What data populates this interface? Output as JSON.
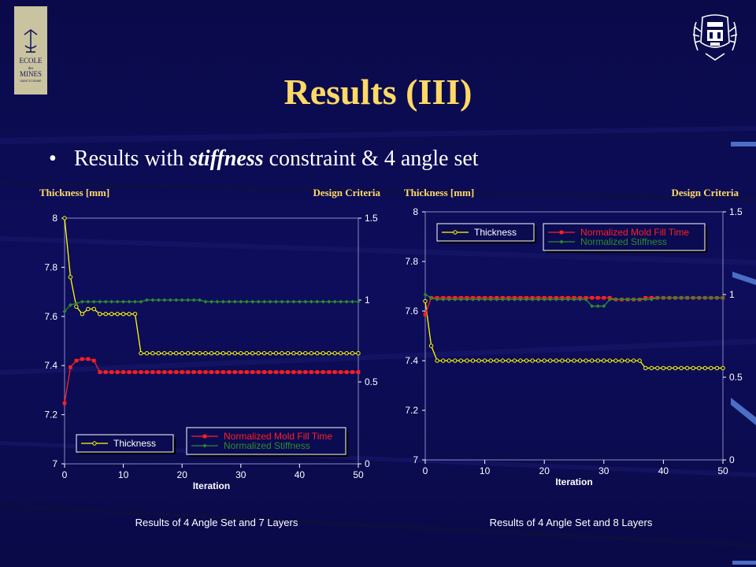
{
  "slide": {
    "title": "Results (III)",
    "bullet_prefix": "Results with ",
    "bullet_emphasis": "stiffness",
    "bullet_suffix": " constraint & 4 angle set",
    "logo_left_text": [
      "ECOLE",
      "des",
      "MINES",
      "SAINT-ETIENNE"
    ]
  },
  "chart_data": [
    {
      "type": "line",
      "caption": "Results of 4 Angle Set and 7 Layers",
      "left_axis_title": "Thickness [mm]",
      "right_axis_title": "Design Criteria",
      "xlabel": "Iteration",
      "xlim": [
        0,
        50
      ],
      "xticks": [
        0,
        10,
        20,
        30,
        40,
        50
      ],
      "ylim_left": [
        7,
        8
      ],
      "yticks_left": [
        7,
        7.2,
        7.4,
        7.6,
        7.8,
        8
      ],
      "ylim_right": [
        0,
        1.5
      ],
      "yticks_right": [
        0,
        0.5,
        1,
        1.5
      ],
      "grid": false,
      "legend": [
        "bottom-left",
        "bottom-right"
      ],
      "series": [
        {
          "name": "Thickness",
          "axis": "left",
          "color": "#ffff00",
          "marker": "circle",
          "x": [
            0,
            1,
            2,
            3,
            4,
            5,
            6,
            7,
            8,
            9,
            10,
            11,
            12,
            13,
            14,
            15,
            16,
            17,
            18,
            19,
            20,
            21,
            22,
            23,
            24,
            25,
            26,
            27,
            28,
            29,
            30,
            31,
            32,
            33,
            34,
            35,
            36,
            37,
            38,
            39,
            40,
            41,
            42,
            43,
            44,
            45,
            46,
            47,
            48,
            49,
            50
          ],
          "values": [
            8.0,
            7.76,
            7.64,
            7.61,
            7.63,
            7.63,
            7.61,
            7.61,
            7.61,
            7.61,
            7.61,
            7.61,
            7.61,
            7.45,
            7.45,
            7.45,
            7.45,
            7.45,
            7.45,
            7.45,
            7.45,
            7.45,
            7.45,
            7.45,
            7.45,
            7.45,
            7.45,
            7.45,
            7.45,
            7.45,
            7.45,
            7.45,
            7.45,
            7.45,
            7.45,
            7.45,
            7.45,
            7.45,
            7.45,
            7.45,
            7.45,
            7.45,
            7.45,
            7.45,
            7.45,
            7.45,
            7.45,
            7.45,
            7.45,
            7.45,
            7.45
          ]
        },
        {
          "name": "Normalized Mold Fill Time",
          "axis": "right",
          "color": "#ff2020",
          "marker": "square",
          "x": [
            0,
            1,
            2,
            3,
            4,
            5,
            6,
            7,
            8,
            9,
            10,
            11,
            12,
            13,
            14,
            15,
            16,
            17,
            18,
            19,
            20,
            21,
            22,
            23,
            24,
            25,
            26,
            27,
            28,
            29,
            30,
            31,
            32,
            33,
            34,
            35,
            36,
            37,
            38,
            39,
            40,
            41,
            42,
            43,
            44,
            45,
            46,
            47,
            48,
            49,
            50
          ],
          "values": [
            0.37,
            0.59,
            0.63,
            0.64,
            0.64,
            0.63,
            0.56,
            0.56,
            0.56,
            0.56,
            0.56,
            0.56,
            0.56,
            0.56,
            0.56,
            0.56,
            0.56,
            0.56,
            0.56,
            0.56,
            0.56,
            0.56,
            0.56,
            0.56,
            0.56,
            0.56,
            0.56,
            0.56,
            0.56,
            0.56,
            0.56,
            0.56,
            0.56,
            0.56,
            0.56,
            0.56,
            0.56,
            0.56,
            0.56,
            0.56,
            0.56,
            0.56,
            0.56,
            0.56,
            0.56,
            0.56,
            0.56,
            0.56,
            0.56,
            0.56,
            0.56
          ]
        },
        {
          "name": "Normalized Stiffness",
          "axis": "right",
          "color": "#2e8b2e",
          "marker": "diamond",
          "x": [
            0,
            1,
            2,
            3,
            4,
            5,
            6,
            7,
            8,
            9,
            10,
            11,
            12,
            13,
            14,
            15,
            16,
            17,
            18,
            19,
            20,
            21,
            22,
            23,
            24,
            25,
            26,
            27,
            28,
            29,
            30,
            31,
            32,
            33,
            34,
            35,
            36,
            37,
            38,
            39,
            40,
            41,
            42,
            43,
            44,
            45,
            46,
            47,
            48,
            49,
            50
          ],
          "values": [
            0.93,
            0.97,
            0.98,
            0.99,
            0.99,
            0.99,
            0.99,
            0.99,
            0.99,
            0.99,
            0.99,
            0.99,
            0.99,
            0.99,
            1.0,
            1.0,
            1.0,
            1.0,
            1.0,
            1.0,
            1.0,
            1.0,
            1.0,
            1.0,
            0.99,
            0.99,
            0.99,
            0.99,
            0.99,
            0.99,
            0.99,
            0.99,
            0.99,
            0.99,
            0.99,
            0.99,
            0.99,
            0.99,
            0.99,
            0.99,
            0.99,
            0.99,
            0.99,
            0.99,
            0.99,
            0.99,
            0.99,
            0.99,
            0.99,
            0.99,
            0.99
          ]
        }
      ]
    },
    {
      "type": "line",
      "caption": "Results of 4 Angle Set and 8 Layers",
      "left_axis_title": "Thickness [mm]",
      "right_axis_title": "Design Criteria",
      "xlabel": "Iteration",
      "xlim": [
        0,
        50
      ],
      "xticks": [
        0,
        10,
        20,
        30,
        40,
        50
      ],
      "ylim_left": [
        7,
        8
      ],
      "yticks_left": [
        7,
        7.2,
        7.4,
        7.6,
        7.8,
        8
      ],
      "ylim_right": [
        0,
        1.5
      ],
      "yticks_right": [
        0,
        0.5,
        1,
        1.5
      ],
      "grid": false,
      "legend": [
        "top-left",
        "top-right"
      ],
      "series": [
        {
          "name": "Thickness",
          "axis": "left",
          "color": "#ffff00",
          "marker": "circle",
          "x": [
            0,
            1,
            2,
            3,
            4,
            5,
            6,
            7,
            8,
            9,
            10,
            11,
            12,
            13,
            14,
            15,
            16,
            17,
            18,
            19,
            20,
            21,
            22,
            23,
            24,
            25,
            26,
            27,
            28,
            29,
            30,
            31,
            32,
            33,
            34,
            35,
            36,
            37,
            38,
            39,
            40,
            41,
            42,
            43,
            44,
            45,
            46,
            47,
            48,
            49,
            50
          ],
          "values": [
            7.64,
            7.46,
            7.4,
            7.4,
            7.4,
            7.4,
            7.4,
            7.4,
            7.4,
            7.4,
            7.4,
            7.4,
            7.4,
            7.4,
            7.4,
            7.4,
            7.4,
            7.4,
            7.4,
            7.4,
            7.4,
            7.4,
            7.4,
            7.4,
            7.4,
            7.4,
            7.4,
            7.4,
            7.4,
            7.4,
            7.4,
            7.4,
            7.4,
            7.4,
            7.4,
            7.4,
            7.4,
            7.37,
            7.37,
            7.37,
            7.37,
            7.37,
            7.37,
            7.37,
            7.37,
            7.37,
            7.37,
            7.37,
            7.37,
            7.37,
            7.37
          ]
        },
        {
          "name": "Normalized Mold Fill Time",
          "axis": "right",
          "color": "#ff2020",
          "marker": "square",
          "x": [
            0,
            1,
            2,
            3,
            4,
            5,
            6,
            7,
            8,
            9,
            10,
            11,
            12,
            13,
            14,
            15,
            16,
            17,
            18,
            19,
            20,
            21,
            22,
            23,
            24,
            25,
            26,
            27,
            28,
            29,
            30,
            31,
            32,
            33,
            34,
            35,
            36,
            37,
            38,
            39,
            40,
            41,
            42,
            43,
            44,
            45,
            46,
            47,
            48,
            49,
            50
          ],
          "values": [
            0.88,
            0.98,
            0.98,
            0.98,
            0.98,
            0.98,
            0.98,
            0.98,
            0.98,
            0.98,
            0.98,
            0.98,
            0.98,
            0.98,
            0.98,
            0.98,
            0.98,
            0.98,
            0.98,
            0.98,
            0.98,
            0.98,
            0.98,
            0.98,
            0.98,
            0.98,
            0.98,
            0.98,
            0.98,
            0.98,
            0.98,
            0.98,
            0.97,
            0.97,
            0.97,
            0.97,
            0.97,
            0.98,
            0.98,
            0.98,
            0.98,
            0.98,
            0.98,
            0.98,
            0.98,
            0.98,
            0.98,
            0.98,
            0.98,
            0.98,
            0.98
          ]
        },
        {
          "name": "Normalized Stiffness",
          "axis": "right",
          "color": "#2e8b2e",
          "marker": "diamond",
          "x": [
            0,
            1,
            2,
            3,
            4,
            5,
            6,
            7,
            8,
            9,
            10,
            11,
            12,
            13,
            14,
            15,
            16,
            17,
            18,
            19,
            20,
            21,
            22,
            23,
            24,
            25,
            26,
            27,
            28,
            29,
            30,
            31,
            32,
            33,
            34,
            35,
            36,
            37,
            38,
            39,
            40,
            41,
            42,
            43,
            44,
            45,
            46,
            47,
            48,
            49,
            50
          ],
          "values": [
            1.0,
            0.98,
            0.97,
            0.97,
            0.97,
            0.97,
            0.97,
            0.97,
            0.97,
            0.97,
            0.97,
            0.97,
            0.97,
            0.97,
            0.97,
            0.97,
            0.97,
            0.97,
            0.97,
            0.97,
            0.97,
            0.97,
            0.97,
            0.97,
            0.97,
            0.97,
            0.97,
            0.97,
            0.93,
            0.93,
            0.93,
            0.97,
            0.97,
            0.97,
            0.97,
            0.97,
            0.97,
            0.97,
            0.97,
            0.98,
            0.98,
            0.98,
            0.98,
            0.98,
            0.98,
            0.98,
            0.98,
            0.98,
            0.98,
            0.98,
            0.98
          ]
        }
      ]
    }
  ]
}
